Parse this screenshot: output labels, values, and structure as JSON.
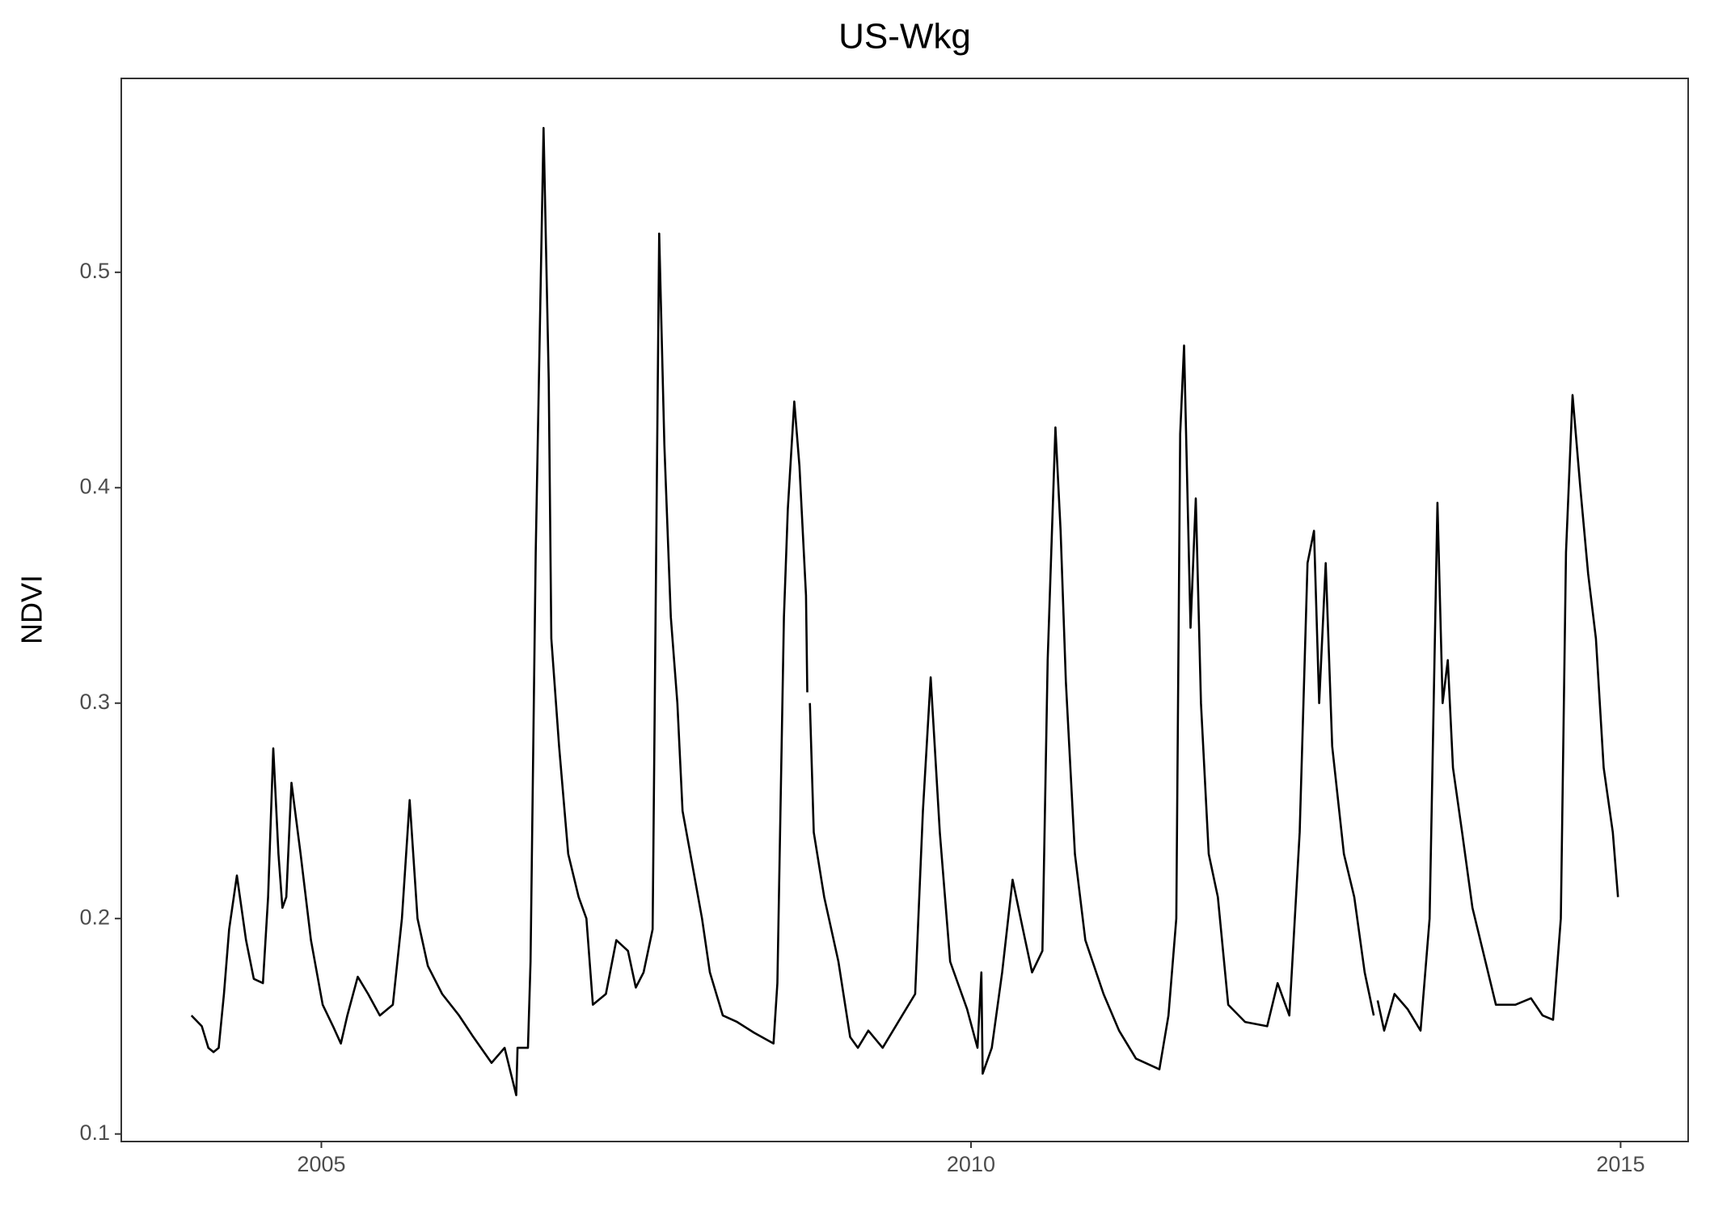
{
  "chart_data": {
    "type": "line",
    "title": "US-Wkg",
    "y_label": "NDVI",
    "color": "#000000",
    "x": [
      2004.0,
      2004.08,
      2004.13,
      2004.17,
      2004.21,
      2004.25,
      2004.29,
      2004.35,
      2004.42,
      2004.48,
      2004.55,
      2004.59,
      2004.63,
      2004.67,
      2004.7,
      2004.73,
      2004.77,
      2004.84,
      2004.92,
      2005.01,
      2005.09,
      2005.15,
      2005.2,
      2005.28,
      2005.36,
      2005.45,
      2005.55,
      2005.62,
      2005.68,
      2005.74,
      2005.82,
      2005.93,
      2006.06,
      2006.17,
      2006.31,
      2006.41,
      2006.5,
      2006.51,
      2006.59,
      2006.61,
      2006.65,
      2006.71,
      2006.75,
      2006.77,
      2006.83,
      2006.9,
      2006.98,
      2007.04,
      2007.09,
      2007.19,
      2007.27,
      2007.36,
      2007.42,
      2007.48,
      2007.55,
      2007.6,
      2007.64,
      2007.69,
      2007.74,
      2007.78,
      2007.84,
      2007.93,
      2007.99,
      2008.09,
      2008.2,
      2008.33,
      2008.48,
      2008.51,
      2008.56,
      2008.59,
      2008.64,
      2008.68,
      2008.73,
      2008.74,
      2008.75,
      2008.76,
      2008.79,
      2008.87,
      2008.98,
      2009.07,
      2009.13,
      2009.21,
      2009.32,
      2009.44,
      2009.57,
      2009.63,
      2009.69,
      2009.76,
      2009.84,
      2009.97,
      2010.05,
      2010.08,
      2010.09,
      2010.16,
      2010.24,
      2010.32,
      2010.4,
      2010.47,
      2010.55,
      2010.59,
      2010.65,
      2010.69,
      2010.73,
      2010.8,
      2010.88,
      2011.02,
      2011.14,
      2011.27,
      2011.45,
      2011.52,
      2011.58,
      2011.61,
      2011.64,
      2011.69,
      2011.73,
      2011.77,
      2011.83,
      2011.9,
      2011.98,
      2012.11,
      2012.28,
      2012.36,
      2012.45,
      2012.53,
      2012.59,
      2012.64,
      2012.68,
      2012.73,
      2012.78,
      2012.87,
      2012.95,
      2013.03,
      2013.1,
      2013.115,
      2013.13,
      2013.18,
      2013.26,
      2013.36,
      2013.46,
      2013.53,
      2013.59,
      2013.63,
      2013.67,
      2013.71,
      2013.78,
      2013.86,
      2013.94,
      2014.04,
      2014.19,
      2014.31,
      2014.4,
      2014.48,
      2014.54,
      2014.58,
      2014.63,
      2014.69,
      2014.75,
      2014.81,
      2014.87,
      2014.94,
      2014.98
    ],
    "values": [
      0.155,
      0.15,
      0.14,
      0.138,
      0.14,
      0.165,
      0.195,
      0.22,
      0.19,
      0.172,
      0.17,
      0.21,
      0.279,
      0.23,
      0.205,
      0.21,
      0.263,
      0.23,
      0.19,
      0.16,
      0.15,
      0.142,
      0.155,
      0.173,
      0.165,
      0.155,
      0.16,
      0.2,
      0.255,
      0.2,
      0.178,
      0.165,
      0.155,
      0.145,
      0.133,
      0.14,
      0.118,
      0.14,
      0.14,
      0.18,
      0.37,
      0.567,
      0.45,
      0.33,
      0.28,
      0.23,
      0.21,
      0.2,
      0.16,
      0.165,
      0.19,
      0.185,
      0.168,
      0.175,
      0.195,
      0.518,
      0.42,
      0.34,
      0.3,
      0.25,
      0.23,
      0.2,
      0.175,
      0.155,
      0.152,
      0.147,
      0.142,
      0.17,
      0.34,
      0.39,
      0.44,
      0.41,
      0.35,
      0.305,
      null,
      0.3,
      0.24,
      0.21,
      0.18,
      0.145,
      0.14,
      0.148,
      0.14,
      0.152,
      0.165,
      0.25,
      0.312,
      0.24,
      0.18,
      0.158,
      0.14,
      0.175,
      0.128,
      0.14,
      0.175,
      0.218,
      0.195,
      0.175,
      0.185,
      0.32,
      0.428,
      0.38,
      0.31,
      0.23,
      0.19,
      0.165,
      0.148,
      0.135,
      0.13,
      0.155,
      0.2,
      0.425,
      0.466,
      0.335,
      0.395,
      0.3,
      0.23,
      0.21,
      0.16,
      0.152,
      0.15,
      0.17,
      0.155,
      0.24,
      0.365,
      0.38,
      0.3,
      0.365,
      0.28,
      0.23,
      0.21,
      0.175,
      0.155,
      null,
      0.162,
      0.148,
      0.165,
      0.158,
      0.148,
      0.2,
      0.393,
      0.3,
      0.32,
      0.27,
      0.24,
      0.205,
      0.185,
      0.16,
      0.16,
      0.163,
      0.155,
      0.153,
      0.2,
      0.37,
      0.443,
      0.4,
      0.36,
      0.33,
      0.27,
      0.24,
      0.21
    ],
    "xlim": [
      2003.46,
      2015.52
    ],
    "xticks": [
      2005,
      2010,
      2015
    ],
    "ylim": [
      0.0965,
      0.59
    ],
    "yticks": [
      0.1,
      0.2,
      0.3,
      0.4,
      0.5
    ]
  }
}
